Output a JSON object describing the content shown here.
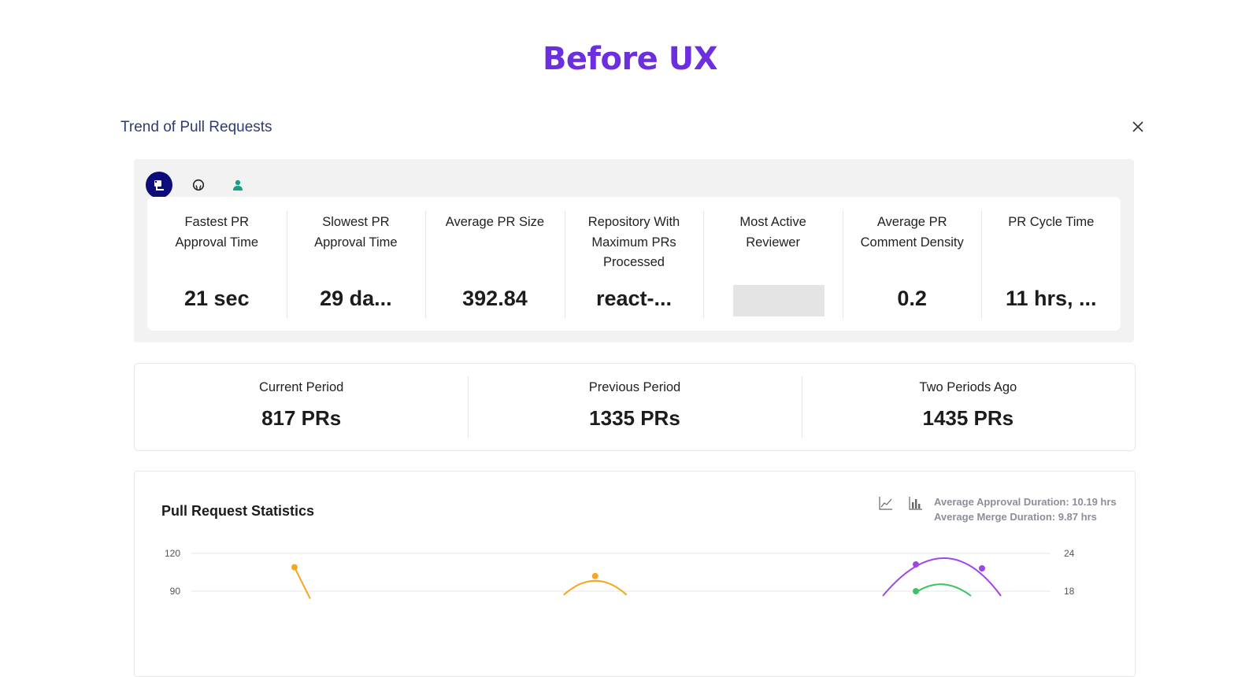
{
  "page": {
    "title": "Before UX"
  },
  "modal": {
    "title": "Trend of Pull Requests",
    "close_icon": "close-icon"
  },
  "source_tabs": [
    {
      "icon": "pr-icon",
      "active": true
    },
    {
      "icon": "github-icon",
      "active": false
    },
    {
      "icon": "user-icon",
      "active": false
    }
  ],
  "metrics": [
    {
      "label": "Fastest PR Approval Time",
      "value": "21 sec"
    },
    {
      "label": "Slowest PR Approval Time",
      "value": "29 da..."
    },
    {
      "label": "Average PR Size",
      "value": "392.84"
    },
    {
      "label": "Repository With Maximum PRs Processed",
      "value": "react-..."
    },
    {
      "label": "Most Active Reviewer",
      "value": ""
    },
    {
      "label": "Average PR Comment Density",
      "value": "0.2"
    },
    {
      "label": "PR Cycle Time",
      "value": "11 hrs, ..."
    }
  ],
  "periods": [
    {
      "label": "Current Period",
      "value": "817 PRs"
    },
    {
      "label": "Previous Period",
      "value": "1335 PRs"
    },
    {
      "label": "Two Periods Ago",
      "value": "1435 PRs"
    }
  ],
  "stats": {
    "title": "Pull Request Statistics",
    "toggle_icons": [
      "line-chart-icon",
      "bar-chart-icon"
    ],
    "average_approval": "Average Approval Duration: 10.19 hrs",
    "average_merge": "Average Merge Duration: 9.87 hrs"
  },
  "chart_data": {
    "type": "line",
    "title": "",
    "y_left_ticks": [
      "120",
      "90"
    ],
    "y_right_ticks": [
      "24",
      "18"
    ],
    "ylim_left": [
      0,
      120
    ],
    "ylim_right": [
      0,
      24
    ],
    "colors": {
      "orange": "#f5a623",
      "purple": "#a146e6",
      "green": "#3cc464",
      "grid": "#e4e4e4"
    },
    "series": [
      {
        "color": "orange",
        "axis": "left",
        "points": [
          [
            0.12,
            109
          ],
          [
            0.47,
            102
          ]
        ]
      },
      {
        "color": "purple",
        "axis": "right",
        "points": [
          [
            0.88,
            21.5
          ],
          [
            1.0,
            21.2
          ]
        ]
      },
      {
        "color": "green",
        "axis": "right",
        "points": [
          [
            0.88,
            18
          ],
          [
            0.95,
            19
          ]
        ]
      }
    ]
  }
}
